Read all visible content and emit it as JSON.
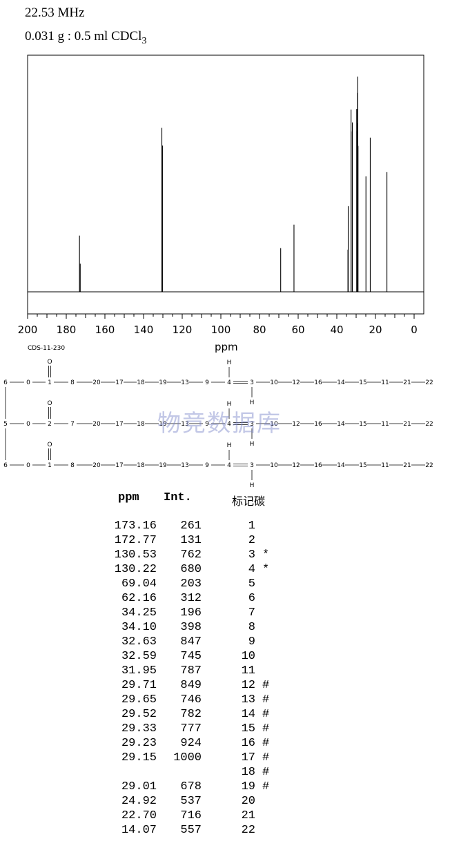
{
  "header": {
    "frequency": "22.53 MHz",
    "sample_main": "0.031 g : 0.5 ml CDCl",
    "sample_sub": "3"
  },
  "chart_data": {
    "type": "line",
    "xlabel": "ppm",
    "xlim": [
      200,
      0
    ],
    "x_ticks": [
      200,
      180,
      160,
      140,
      120,
      100,
      80,
      60,
      40,
      20,
      0
    ],
    "grid": false,
    "peaks": [
      {
        "ppm": 173.16,
        "intensity": 261
      },
      {
        "ppm": 172.77,
        "intensity": 131
      },
      {
        "ppm": 130.53,
        "intensity": 762
      },
      {
        "ppm": 130.22,
        "intensity": 680
      },
      {
        "ppm": 69.04,
        "intensity": 203
      },
      {
        "ppm": 62.16,
        "intensity": 312
      },
      {
        "ppm": 34.25,
        "intensity": 196
      },
      {
        "ppm": 34.1,
        "intensity": 398
      },
      {
        "ppm": 32.63,
        "intensity": 847
      },
      {
        "ppm": 32.59,
        "intensity": 745
      },
      {
        "ppm": 31.95,
        "intensity": 787
      },
      {
        "ppm": 29.71,
        "intensity": 849
      },
      {
        "ppm": 29.65,
        "intensity": 746
      },
      {
        "ppm": 29.52,
        "intensity": 782
      },
      {
        "ppm": 29.33,
        "intensity": 777
      },
      {
        "ppm": 29.23,
        "intensity": 924
      },
      {
        "ppm": 29.15,
        "intensity": 1000
      },
      {
        "ppm": 29.01,
        "intensity": 678
      },
      {
        "ppm": 24.92,
        "intensity": 537
      },
      {
        "ppm": 22.7,
        "intensity": 716
      },
      {
        "ppm": 14.07,
        "intensity": 557
      }
    ]
  },
  "code": "CDS-11-230",
  "watermark": "物竞数据库",
  "structure": {
    "rows": [
      {
        "left": [
          "6",
          "0",
          "1",
          "8",
          "20",
          "17",
          "18",
          "19",
          "13",
          "9",
          "4",
          "3",
          "10",
          "12",
          "16",
          "14",
          "15",
          "11",
          "21",
          "22"
        ]
      },
      {
        "left": [
          "5",
          "0",
          "2",
          "7",
          "20",
          "17",
          "18",
          "19",
          "13",
          "9",
          "4",
          "3",
          "10",
          "12",
          "16",
          "14",
          "15",
          "11",
          "21",
          "22"
        ]
      },
      {
        "left": [
          "6",
          "0",
          "1",
          "8",
          "20",
          "17",
          "18",
          "19",
          "13",
          "9",
          "4",
          "3",
          "10",
          "12",
          "16",
          "14",
          "15",
          "11",
          "21",
          "22"
        ]
      }
    ],
    "o_label": "O",
    "h_label": "H"
  },
  "table": {
    "headers": {
      "ppm": "ppm",
      "int": "Int.",
      "carbon": "标记碳"
    },
    "rows": [
      {
        "ppm": "173.16",
        "int": "261",
        "carbon": "1",
        "mark": ""
      },
      {
        "ppm": "172.77",
        "int": "131",
        "carbon": "2",
        "mark": ""
      },
      {
        "ppm": "130.53",
        "int": "762",
        "carbon": "3",
        "mark": "*"
      },
      {
        "ppm": "130.22",
        "int": "680",
        "carbon": "4",
        "mark": "*"
      },
      {
        "ppm": "69.04",
        "int": "203",
        "carbon": "5",
        "mark": ""
      },
      {
        "ppm": "62.16",
        "int": "312",
        "carbon": "6",
        "mark": ""
      },
      {
        "ppm": "34.25",
        "int": "196",
        "carbon": "7",
        "mark": ""
      },
      {
        "ppm": "34.10",
        "int": "398",
        "carbon": "8",
        "mark": ""
      },
      {
        "ppm": "32.63",
        "int": "847",
        "carbon": "9",
        "mark": ""
      },
      {
        "ppm": "32.59",
        "int": "745",
        "carbon": "10",
        "mark": ""
      },
      {
        "ppm": "31.95",
        "int": "787",
        "carbon": "11",
        "mark": ""
      },
      {
        "ppm": "29.71",
        "int": "849",
        "carbon": "12",
        "mark": "#"
      },
      {
        "ppm": "29.65",
        "int": "746",
        "carbon": "13",
        "mark": "#"
      },
      {
        "ppm": "29.52",
        "int": "782",
        "carbon": "14",
        "mark": "#"
      },
      {
        "ppm": "29.33",
        "int": "777",
        "carbon": "15",
        "mark": "#"
      },
      {
        "ppm": "29.23",
        "int": "924",
        "carbon": "16",
        "mark": "#"
      },
      {
        "ppm": "29.15",
        "int": "1000",
        "carbon": "17",
        "mark": "#"
      },
      {
        "ppm": "",
        "int": "",
        "carbon": "18",
        "mark": "#"
      },
      {
        "ppm": "29.01",
        "int": "678",
        "carbon": "19",
        "mark": "#"
      },
      {
        "ppm": "24.92",
        "int": "537",
        "carbon": "20",
        "mark": ""
      },
      {
        "ppm": "22.70",
        "int": "716",
        "carbon": "21",
        "mark": ""
      },
      {
        "ppm": "14.07",
        "int": "557",
        "carbon": "22",
        "mark": ""
      }
    ]
  }
}
